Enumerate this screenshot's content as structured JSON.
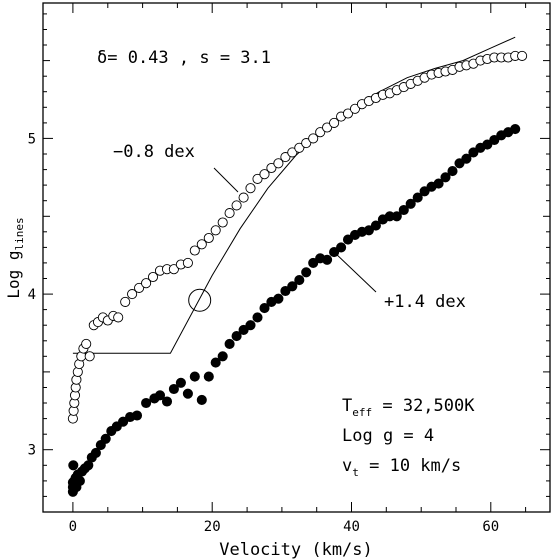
{
  "chart_data": {
    "type": "scatter",
    "xlabel": "Velocity (km/s)",
    "ylabel": "Log g",
    "ylabel_sub": "lines",
    "xlim": [
      -4.3,
      68.5
    ],
    "ylim": [
      2.6,
      5.87
    ],
    "x_ticks": [
      0,
      20,
      40,
      60
    ],
    "y_ticks": [
      3,
      4,
      5
    ],
    "grid": false,
    "annotations": {
      "delta_label": "δ= 0.43 , s = 3.1",
      "minus_dex": "−0.8 dex",
      "plus_dex": "+1.4 dex",
      "teff_prefix": "T",
      "teff_sub": "eff",
      "teff_value": " = 32,500K",
      "logg": "Log g = 4",
      "vt_prefix": "v",
      "vt_sub": "t",
      "vt_value": " = 10 km/s"
    },
    "series": [
      {
        "marker": "open-circle",
        "x": [
          0,
          0.1,
          0.2,
          0.3,
          0.4,
          0.5,
          0.7,
          0.9,
          1.2,
          1.5,
          1.9,
          2.4,
          3,
          3.6,
          4.3,
          5,
          5.8,
          6.5,
          7.5,
          8.5,
          9.5,
          10.5,
          11.5,
          12.5,
          13.5,
          14.5,
          15.5,
          16.5,
          17.5,
          18.5,
          19.5,
          20.5,
          21.5,
          22.5,
          23.5,
          24.5,
          25.5,
          26.5,
          27.5,
          28.5,
          29.5,
          30.5,
          31.5,
          32.5,
          33.5,
          34.5,
          35.5,
          36.5,
          37.5,
          38.5,
          39.5,
          40.5,
          41.5,
          42.5,
          43.5,
          44.5,
          45.5,
          46.5,
          47.5,
          48.5,
          49.5,
          50.5,
          51.5,
          52.5,
          53.5,
          54.5,
          55.5,
          56.5,
          57.5,
          58.5,
          59.5,
          60.5,
          61.5,
          62.5,
          63.5,
          64.5
        ],
        "y": [
          3.2,
          3.25,
          3.3,
          3.35,
          3.4,
          3.45,
          3.5,
          3.55,
          3.6,
          3.65,
          3.68,
          3.6,
          3.8,
          3.82,
          3.85,
          3.83,
          3.86,
          3.85,
          3.95,
          4.0,
          4.04,
          4.07,
          4.11,
          4.15,
          4.16,
          4.16,
          4.19,
          4.2,
          4.28,
          4.32,
          4.36,
          4.41,
          4.46,
          4.52,
          4.57,
          4.62,
          4.68,
          4.74,
          4.77,
          4.81,
          4.84,
          4.88,
          4.91,
          4.94,
          4.97,
          5.0,
          5.04,
          5.07,
          5.1,
          5.14,
          5.16,
          5.19,
          5.22,
          5.24,
          5.26,
          5.28,
          5.29,
          5.31,
          5.33,
          5.35,
          5.37,
          5.39,
          5.41,
          5.42,
          5.43,
          5.44,
          5.46,
          5.47,
          5.48,
          5.5,
          5.51,
          5.52,
          5.52,
          5.52,
          5.53,
          5.53
        ]
      },
      {
        "marker": "filled-circle",
        "x": [
          0,
          0,
          0,
          0.05,
          0.1,
          0.15,
          0.2,
          0.3,
          0.4,
          0.5,
          0.7,
          1,
          1.3,
          1.7,
          2.2,
          2.7,
          3.3,
          4,
          4.7,
          5.5,
          6.3,
          7.2,
          8.2,
          9.2,
          10.5,
          11.7,
          12.5,
          13.5,
          14.5,
          15.5,
          16.5,
          17.5,
          18.5,
          19.5,
          20.5,
          21.5,
          22.5,
          23.5,
          24.5,
          25.5,
          26.5,
          27.5,
          28.5,
          29.5,
          30.5,
          31.5,
          32.5,
          33.5,
          34.5,
          35.5,
          36.5,
          37.5,
          38.5,
          39.5,
          40.5,
          41.5,
          42.5,
          43.5,
          44.5,
          45.5,
          46.5,
          47.5,
          48.5,
          49.5,
          50.5,
          51.5,
          52.5,
          53.5,
          54.5,
          55.5,
          56.5,
          57.5,
          58.5,
          59.5,
          60.5,
          61.5,
          62.5,
          63.5
        ],
        "y": [
          2.73,
          2.76,
          2.79,
          2.9,
          2.75,
          2.77,
          2.8,
          2.78,
          2.82,
          2.76,
          2.84,
          2.8,
          2.86,
          2.88,
          2.9,
          2.95,
          2.98,
          3.03,
          3.07,
          3.12,
          3.15,
          3.18,
          3.21,
          3.22,
          3.3,
          3.33,
          3.35,
          3.31,
          3.39,
          3.43,
          3.36,
          3.47,
          3.32,
          3.47,
          3.56,
          3.6,
          3.68,
          3.73,
          3.77,
          3.8,
          3.85,
          3.91,
          3.95,
          3.97,
          4.02,
          4.05,
          4.09,
          4.14,
          4.2,
          4.23,
          4.22,
          4.27,
          4.3,
          4.35,
          4.38,
          4.4,
          4.41,
          4.44,
          4.48,
          4.5,
          4.5,
          4.54,
          4.58,
          4.62,
          4.66,
          4.69,
          4.71,
          4.75,
          4.79,
          4.84,
          4.87,
          4.91,
          4.94,
          4.96,
          4.99,
          5.02,
          5.04,
          5.06
        ]
      }
    ],
    "line": {
      "x": [
        0,
        14,
        20,
        24,
        28,
        32,
        36,
        40,
        44,
        48,
        52,
        56,
        60,
        63.5
      ],
      "y": [
        3.62,
        3.62,
        4.12,
        4.42,
        4.68,
        4.89,
        5.06,
        5.19,
        5.3,
        5.39,
        5.45,
        5.5,
        5.58,
        5.65
      ]
    },
    "big_circle": {
      "x": 18.2,
      "y": 3.96
    }
  }
}
